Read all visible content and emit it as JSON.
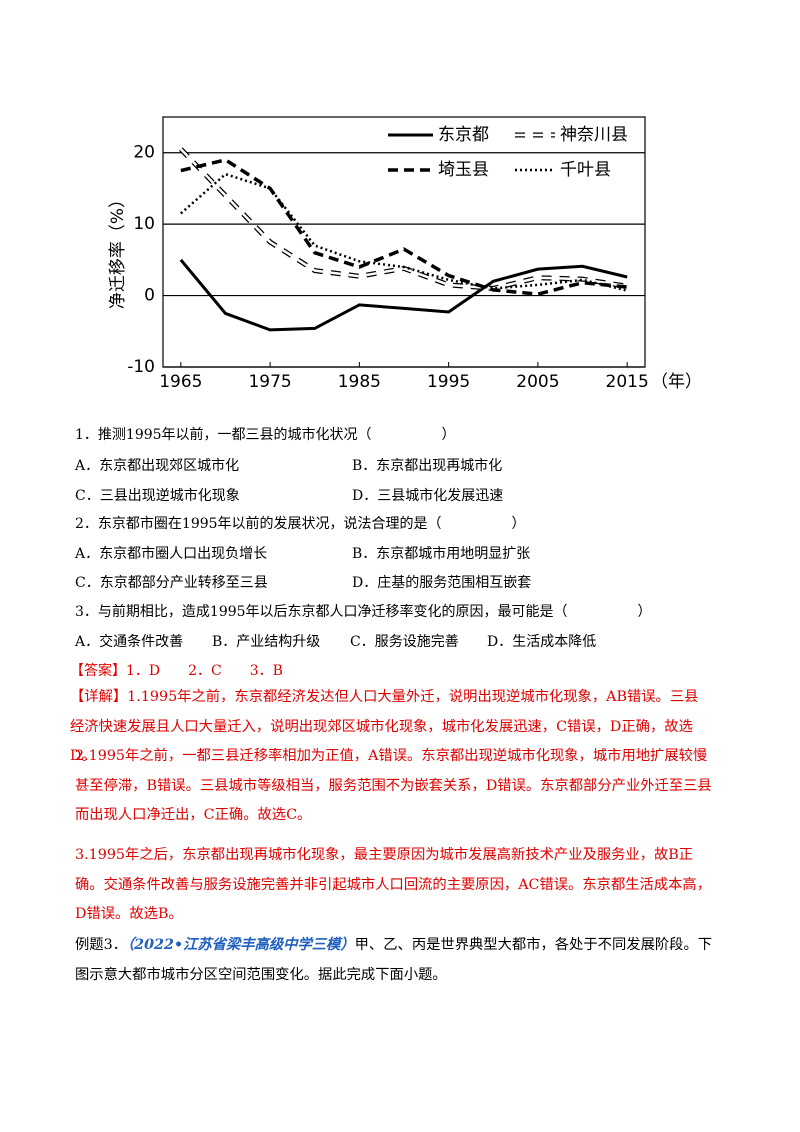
{
  "chart_data": {
    "type": "line",
    "y_label": "净迁移率（%）",
    "x_unit": "（年）",
    "x": [
      1965,
      1970,
      1975,
      1980,
      1985,
      1990,
      1995,
      2000,
      2005,
      2010,
      2015
    ],
    "xlim": [
      1963,
      2017
    ],
    "xticks": [
      1965,
      1975,
      1985,
      1995,
      2005,
      2015
    ],
    "ylim": [
      -10,
      25
    ],
    "yticks": [
      -10,
      0,
      10,
      20
    ],
    "grid": true,
    "legend": "top-right",
    "series": [
      {
        "name": "东京都",
        "color": "#000000",
        "line_style": "solid",
        "values": [
          5,
          -2.5,
          -4.8,
          -4.6,
          -1.3,
          -1.8,
          -2.3,
          2,
          3.7,
          4.1,
          2.6
        ]
      },
      {
        "name": "神奈川县",
        "color": "#000000",
        "line_style": "hollow-dash",
        "values": [
          20.5,
          14,
          7.5,
          3.5,
          2.7,
          3.8,
          1.5,
          1,
          2.5,
          2.3,
          1.3
        ]
      },
      {
        "name": "埼玉县",
        "color": "#000000",
        "line_style": "dash",
        "values": [
          17.5,
          19,
          15,
          6,
          4,
          6.5,
          2.8,
          0.8,
          0.2,
          1.8,
          1.2
        ]
      },
      {
        "name": "千叶县",
        "color": "#000000",
        "line_style": "dot",
        "values": [
          11.5,
          17,
          15,
          7,
          4.8,
          4,
          2.2,
          1,
          1.5,
          2.2,
          0.7
        ]
      }
    ]
  },
  "questions": [
    {
      "stem": "1．推测1995年以前，一都三县的城市化状况（　　　　　）",
      "options": [
        "A．东京都出现郊区城市化",
        "B．东京都出现再城市化",
        "C．三县出现逆城市化现象",
        "D．三县城市化发展迅速"
      ]
    },
    {
      "stem": "2．东京都市圈在1995年以前的发展状况，说法合理的是（　　　　　）",
      "options": [
        "A．东京都市圈人口出现负增长",
        "B．东京都城市用地明显扩张",
        "C．东京都部分产业转移至三县",
        "D．庄基的服务范围相互嵌套"
      ]
    },
    {
      "stem": "3．与前期相比，造成1995年以后东京都人口净迁移率变化的原因，最可能是（　　　　　）",
      "options": [
        "A．交通条件改善",
        "B．产业结构升级",
        "C．服务设施完善",
        "D．生活成本降低"
      ]
    }
  ],
  "answer": "【答案】1．D　　2．C　　3．B",
  "details": [
    "【详解】1.1995年之前，东京都经济发达但人口大量外迁，说明出现逆城市化现象，AB错误。三县经济快速发展且人口大量迁入，说明出现郊区城市化现象，城市化发展迅速，C错误，D正确，故选D。",
    "2.1995年之前，一都三县迁移率相加为正值，A错误。东京都出现逆城市化现象，城市用地扩展较慢甚至停滞，B错误。三县城市等级相当，服务范围不为嵌套关系，D错误。东京都部分产业外迁至三县而出现人口净迁出，C正确。故选C。",
    "3.1995年之后，东京都出现再城市化现象，最主要原因为城市发展高新技术产业及服务业，故B正确。交通条件改善与服务设施完善并非引起城市人口回流的主要原因，AC错误。东京都生活成本高，D错误。故选B。"
  ],
  "example": {
    "label": "例题3．",
    "source": "（2022•江苏省梁丰高级中学三模）",
    "text": "甲、乙、丙是世界典型大都市，各处于不同发展阶段。下图示意大都市城市分区空间范围变化。据此完成下面小题。"
  }
}
